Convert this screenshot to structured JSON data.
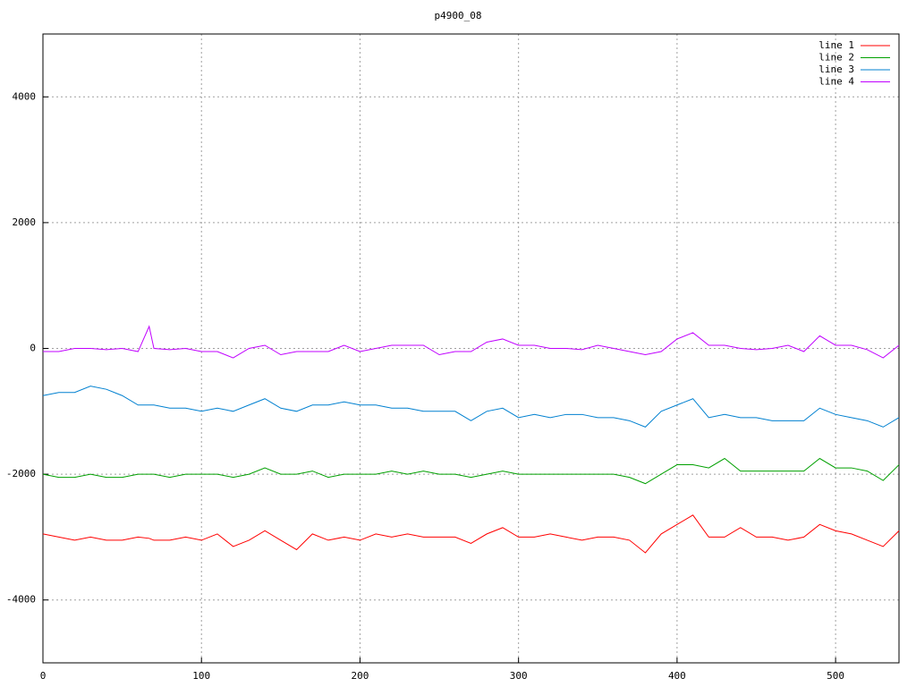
{
  "chart_data": {
    "type": "line",
    "title": "p4900_08",
    "x": [
      0,
      10,
      20,
      30,
      40,
      50,
      60,
      67,
      70,
      80,
      90,
      100,
      110,
      120,
      130,
      140,
      150,
      160,
      170,
      180,
      190,
      200,
      210,
      220,
      230,
      240,
      250,
      260,
      270,
      280,
      290,
      300,
      310,
      320,
      330,
      340,
      350,
      360,
      370,
      380,
      390,
      400,
      410,
      420,
      430,
      440,
      450,
      460,
      470,
      480,
      490,
      500,
      510,
      520,
      530,
      540
    ],
    "series": [
      {
        "name": "line 1",
        "color": "#ff0000",
        "values": [
          -2950,
          -3000,
          -3050,
          -3000,
          -3050,
          -3050,
          -3000,
          -3020,
          -3050,
          -3050,
          -3000,
          -3050,
          -2950,
          -3150,
          -3050,
          -2900,
          -3050,
          -3200,
          -2950,
          -3050,
          -3000,
          -3050,
          -2950,
          -3000,
          -2950,
          -3000,
          -3000,
          -3000,
          -3100,
          -2950,
          -2850,
          -3000,
          -3000,
          -2950,
          -3000,
          -3050,
          -3000,
          -3000,
          -3050,
          -3250,
          -2950,
          -2800,
          -2650,
          -3000,
          -3000,
          -2850,
          -3000,
          -3000,
          -3050,
          -3000,
          -2800,
          -2900,
          -2950,
          -3050,
          -3150,
          -2900
        ]
      },
      {
        "name": "line 2",
        "color": "#00a000",
        "values": [
          -2000,
          -2050,
          -2050,
          -2000,
          -2050,
          -2050,
          -2000,
          -2000,
          -2000,
          -2050,
          -2000,
          -2000,
          -2000,
          -2050,
          -2000,
          -1900,
          -2000,
          -2000,
          -1950,
          -2050,
          -2000,
          -2000,
          -2000,
          -1950,
          -2000,
          -1950,
          -2000,
          -2000,
          -2050,
          -2000,
          -1950,
          -2000,
          -2000,
          -2000,
          -2000,
          -2000,
          -2000,
          -2000,
          -2050,
          -2150,
          -2000,
          -1850,
          -1850,
          -1900,
          -1750,
          -1950,
          -1950,
          -1950,
          -1950,
          -1950,
          -1750,
          -1900,
          -1900,
          -1950,
          -2100,
          -1850
        ]
      },
      {
        "name": "line 3",
        "color": "#0080d0",
        "values": [
          -750,
          -700,
          -700,
          -600,
          -650,
          -750,
          -900,
          -900,
          -900,
          -950,
          -950,
          -1000,
          -950,
          -1000,
          -900,
          -800,
          -950,
          -1000,
          -900,
          -900,
          -850,
          -900,
          -900,
          -950,
          -950,
          -1000,
          -1000,
          -1000,
          -1150,
          -1000,
          -950,
          -1100,
          -1050,
          -1100,
          -1050,
          -1050,
          -1100,
          -1100,
          -1150,
          -1250,
          -1000,
          -900,
          -800,
          -1100,
          -1050,
          -1100,
          -1100,
          -1150,
          -1150,
          -1150,
          -950,
          -1050,
          -1100,
          -1150,
          -1250,
          -1100
        ]
      },
      {
        "name": "line 4",
        "color": "#c000ff",
        "values": [
          -50,
          -50,
          0,
          0,
          -20,
          0,
          -50,
          350,
          0,
          -20,
          0,
          -50,
          -50,
          -150,
          0,
          50,
          -100,
          -50,
          -50,
          -50,
          50,
          -50,
          0,
          50,
          50,
          50,
          -100,
          -50,
          -50,
          100,
          150,
          50,
          50,
          0,
          0,
          -20,
          50,
          0,
          -50,
          -100,
          -50,
          150,
          250,
          50,
          50,
          0,
          -20,
          0,
          50,
          -50,
          200,
          50,
          50,
          -20,
          -150,
          50
        ]
      }
    ],
    "xlim": [
      0,
      540
    ],
    "ylim": [
      -5000,
      5000
    ],
    "xticks": [
      0,
      100,
      200,
      300,
      400,
      500
    ],
    "yticks": [
      -4000,
      -2000,
      0,
      2000,
      4000
    ],
    "grid": true,
    "legend": "upper right"
  }
}
